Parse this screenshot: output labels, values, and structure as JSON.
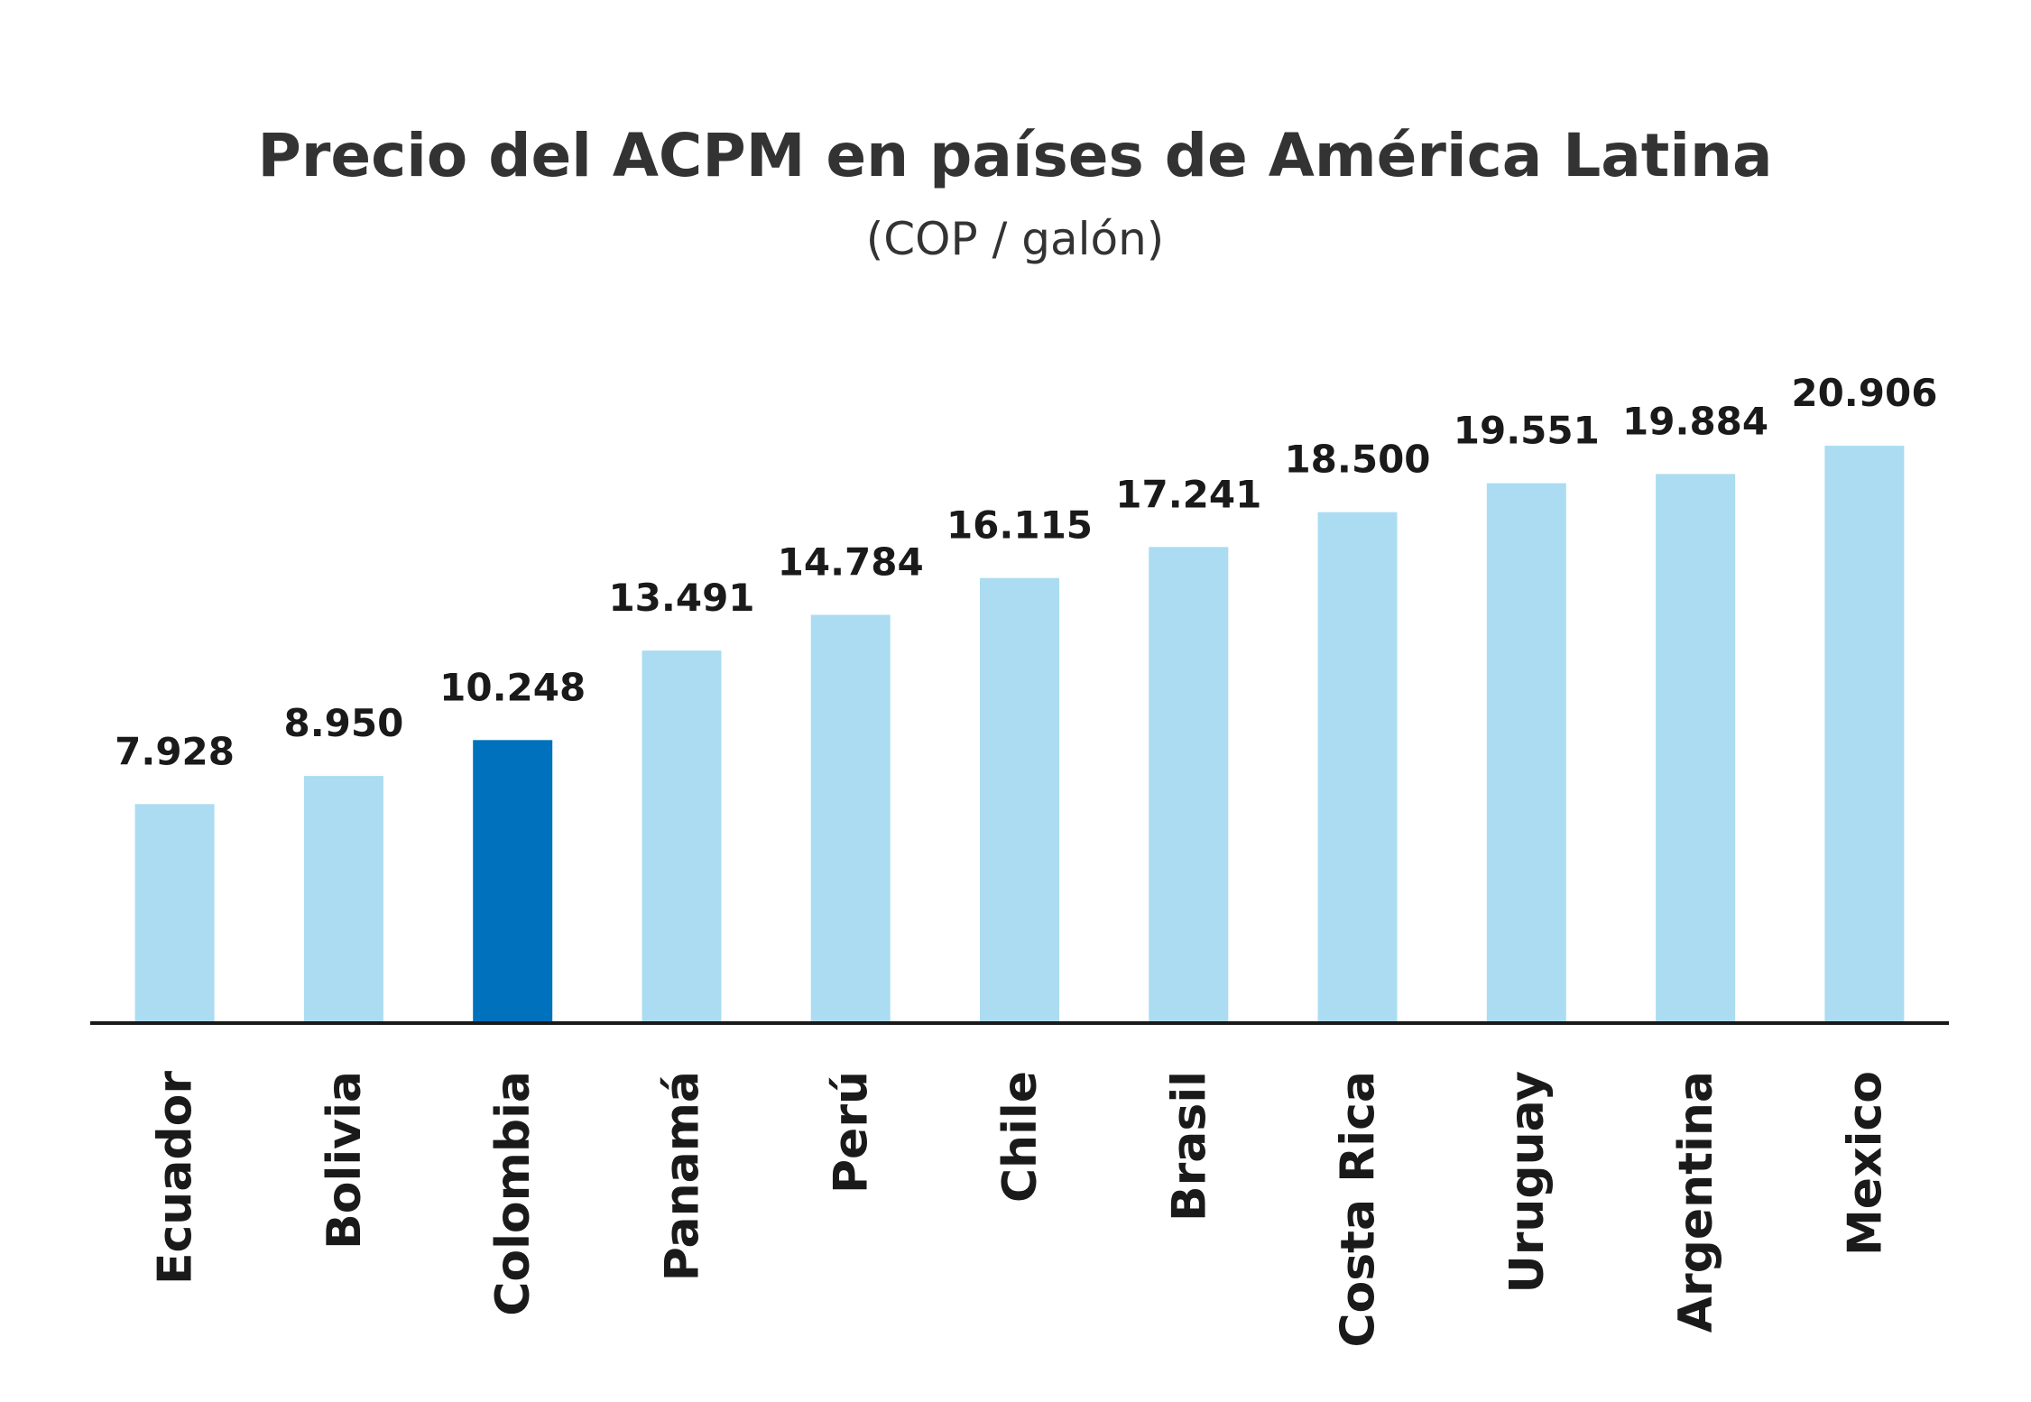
{
  "chart_data": {
    "type": "bar",
    "title": "Precio del ACPM en países de América Latina",
    "subtitle": "(COP / galón)",
    "categories": [
      "Ecuador",
      "Bolivia",
      "Colombia",
      "Panamá",
      "Perú",
      "Chile",
      "Brasil",
      "Costa Rica",
      "Uruguay",
      "Argentina",
      "Mexico"
    ],
    "values": [
      7928,
      8950,
      10248,
      13491,
      14784,
      16115,
      17241,
      18500,
      19551,
      19884,
      20906
    ],
    "value_labels": [
      "7.928",
      "8.950",
      "10.248",
      "13.491",
      "14.784",
      "16.115",
      "17.241",
      "18.500",
      "19.551",
      "19.884",
      "20.906"
    ],
    "highlight": "Colombia",
    "ylim": [
      0,
      23000
    ],
    "grid": false,
    "legend": "none",
    "xlabel": "",
    "ylabel": ""
  },
  "colors": {
    "bar": "#abdcf1",
    "highlight_bar": "#0071bc",
    "highlight_text": "#0071bc",
    "text": "#1a1a1a",
    "title": "#333333",
    "axis": "#1a1a1a"
  }
}
